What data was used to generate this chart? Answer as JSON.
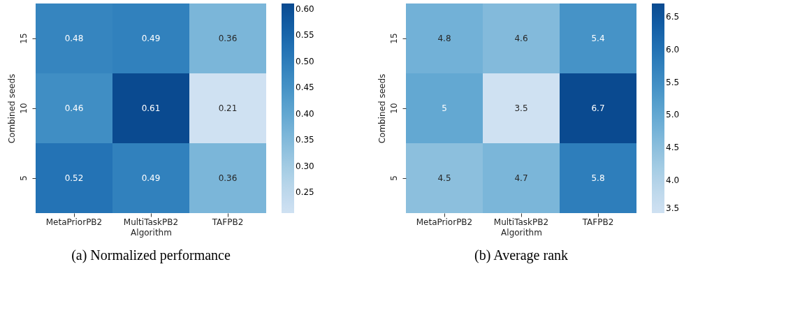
{
  "chart_data": [
    {
      "type": "heatmap",
      "title": "(a) Normalized performance",
      "xlabel": "Algorithm",
      "ylabel": "Combined seeds",
      "categories": [
        "MetaPriorPB2",
        "MultiTaskPB2",
        "TAFPB2"
      ],
      "y_categories": [
        "15",
        "10",
        "5"
      ],
      "cells": [
        [
          0.48,
          0.49,
          0.36
        ],
        [
          0.46,
          0.61,
          0.21
        ],
        [
          0.52,
          0.49,
          0.36
        ]
      ],
      "data_labels": true,
      "clim": [
        0.21,
        0.61
      ],
      "cticks": [
        {
          "value": 0.25,
          "label": "0.25"
        },
        {
          "value": 0.3,
          "label": "0.30"
        },
        {
          "value": 0.35,
          "label": "0.35"
        },
        {
          "value": 0.4,
          "label": "0.40"
        },
        {
          "value": 0.45,
          "label": "0.45"
        },
        {
          "value": 0.5,
          "label": "0.50"
        },
        {
          "value": 0.55,
          "label": "0.55"
        },
        {
          "value": 0.6,
          "label": "0.60"
        }
      ]
    },
    {
      "type": "heatmap",
      "title": "(b) Average rank",
      "xlabel": "Algorithm",
      "ylabel": "Combined seeds",
      "categories": [
        "MetaPriorPB2",
        "MultiTaskPB2",
        "TAFPB2"
      ],
      "y_categories": [
        "15",
        "10",
        "5"
      ],
      "cells": [
        [
          4.8,
          4.6,
          5.4
        ],
        [
          5,
          3.5,
          6.7
        ],
        [
          4.5,
          4.7,
          5.8
        ]
      ],
      "data_labels": true,
      "clim": [
        3.5,
        6.7
      ],
      "cticks": [
        {
          "value": 3.5,
          "label": "3.5"
        },
        {
          "value": 4.0,
          "label": "4.0"
        },
        {
          "value": 4.5,
          "label": "4.5"
        },
        {
          "value": 5.0,
          "label": "5.0"
        },
        {
          "value": 5.5,
          "label": "5.5"
        },
        {
          "value": 6.0,
          "label": "6.0"
        },
        {
          "value": 6.5,
          "label": "6.5"
        }
      ]
    }
  ]
}
